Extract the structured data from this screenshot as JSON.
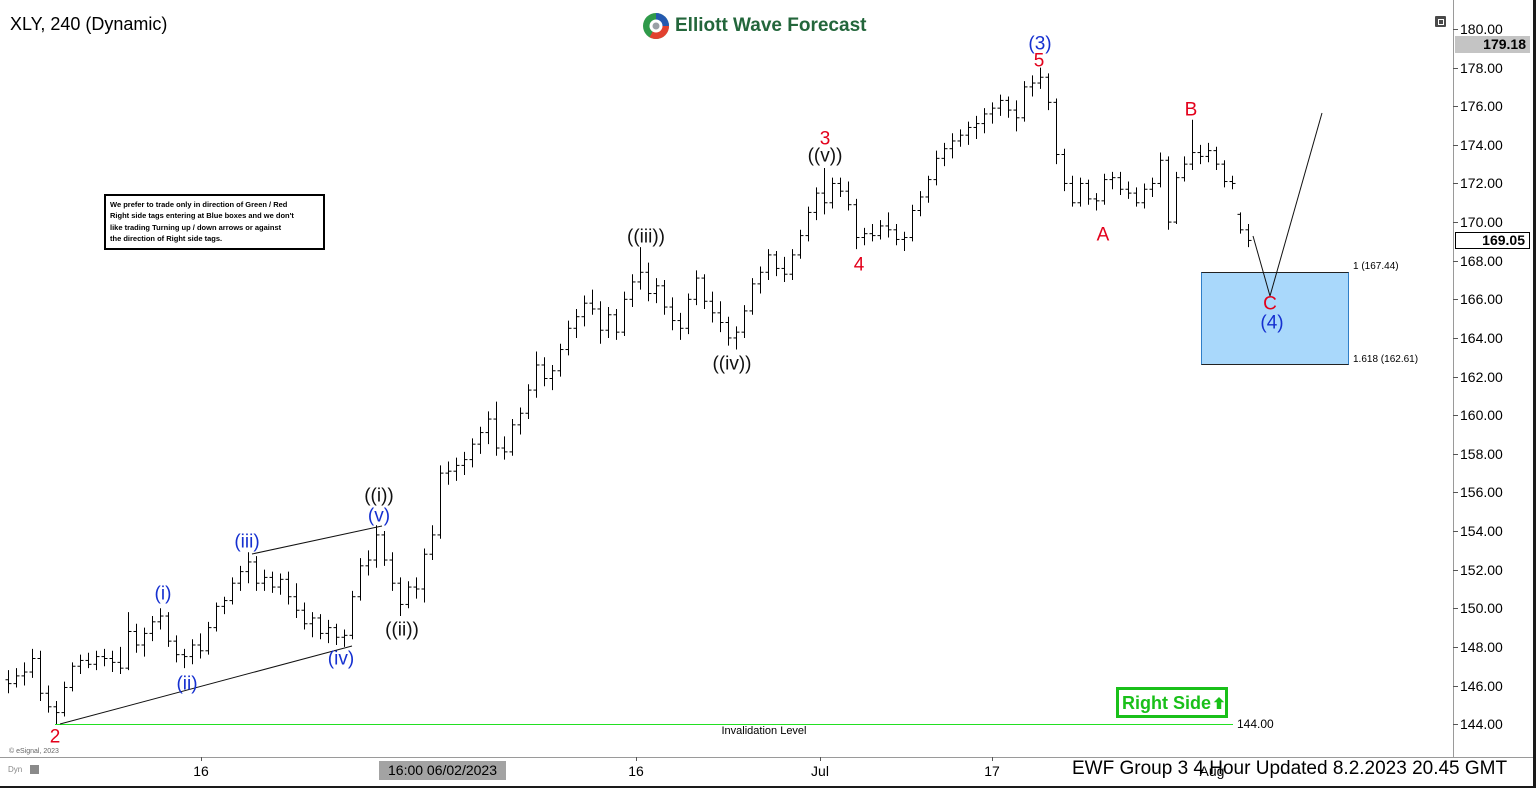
{
  "header": {
    "brand": "Elliott Wave Forecast"
  },
  "note_box": {
    "lines": [
      "We prefer to trade only in direction of Green / Red",
      "Right side tags entering at Blue boxes and we don't",
      "like trading Turning up / down arrows or against",
      "the direction of Right side tags."
    ]
  },
  "right_side_tag": {
    "label": "Right Side"
  },
  "invalidation": {
    "label": "Invalidation Level",
    "value": "144.00"
  },
  "fib_zone": {
    "upper_label": "1 (167.44)",
    "lower_label": "1.618 (162.61)",
    "upper": 167.44,
    "lower": 162.61
  },
  "footer": {
    "watermark": "© eSignal, 2023",
    "status": "EWF Group 3 4 Hour Updated 8.2.2023 20.45 GMT",
    "mode": "Dyn"
  },
  "icons": {
    "logo": "ewf-logo-icon",
    "window": "window-restore-icon",
    "chart_mode": "chart-mode-icon",
    "right_side": "arrow-up-icon"
  },
  "colors": {
    "wave_red": "#e3001b",
    "wave_blue": "#1530d0",
    "wave_black": "#111111",
    "fib_box_fill": "#a9d8fb",
    "fib_box_border": "#2f7fc8",
    "invalidation_line": "#22e022",
    "right_side_green": "#19c019",
    "brand_green": "#23663b",
    "price_bars": "#000000"
  },
  "chart_data": {
    "type": "bar",
    "title": "XLY, 240 (Dynamic)",
    "ylim": [
      142.3,
      181.5
    ],
    "grid": false,
    "y_ticks": [
      "180.00",
      "178.00",
      "176.00",
      "174.00",
      "172.00",
      "170.00",
      "168.00",
      "166.00",
      "164.00",
      "162.00",
      "160.00",
      "158.00",
      "156.00",
      "154.00",
      "152.00",
      "150.00",
      "148.00",
      "146.00",
      "144.00"
    ],
    "x_ticks": [
      "16",
      "16",
      "Jul",
      "17",
      "Aug"
    ],
    "crosshair_time": "16:00 06/02/2023",
    "highlight_price": "179.18",
    "last_price": "169.05",
    "wave_labels": [
      {
        "text": "(3)",
        "color": "#1530d0"
      },
      {
        "text": "5",
        "color": "#e3001b"
      },
      {
        "text": "3",
        "color": "#e3001b"
      },
      {
        "text": "((v))",
        "color": "#111111"
      },
      {
        "text": "B",
        "color": "#e3001b"
      },
      {
        "text": "A",
        "color": "#e3001b"
      },
      {
        "text": "4",
        "color": "#e3001b"
      },
      {
        "text": "((iii))",
        "color": "#111111"
      },
      {
        "text": "((iv))",
        "color": "#111111"
      },
      {
        "text": "C",
        "color": "#e3001b"
      },
      {
        "text": "(4)",
        "color": "#1530d0"
      },
      {
        "text": "((i))",
        "color": "#111111"
      },
      {
        "text": "(v)",
        "color": "#1530d0"
      },
      {
        "text": "(iii)",
        "color": "#1530d0"
      },
      {
        "text": "(i)",
        "color": "#1530d0"
      },
      {
        "text": "((ii))",
        "color": "#111111"
      },
      {
        "text": "(iv)",
        "color": "#1530d0"
      },
      {
        "text": "(ii)",
        "color": "#1530d0"
      },
      {
        "text": "2",
        "color": "#e3001b"
      }
    ],
    "ohlc": [
      [
        146.3,
        146.8,
        145.6,
        146.1
      ],
      [
        146.1,
        146.9,
        145.9,
        146.5
      ],
      [
        146.5,
        147.2,
        146.0,
        146.7
      ],
      [
        146.7,
        147.9,
        146.4,
        147.4
      ],
      [
        147.4,
        147.8,
        145.2,
        145.6
      ],
      [
        145.6,
        146.0,
        144.6,
        144.9
      ],
      [
        144.9,
        145.2,
        144.0,
        144.6
      ],
      [
        144.6,
        146.2,
        144.4,
        145.9
      ],
      [
        145.9,
        147.2,
        145.7,
        147.0
      ],
      [
        147.0,
        147.6,
        146.6,
        147.3
      ],
      [
        147.3,
        147.7,
        146.9,
        147.1
      ],
      [
        147.1,
        147.8,
        146.8,
        147.5
      ],
      [
        147.5,
        147.9,
        147.0,
        147.4
      ],
      [
        147.4,
        147.8,
        146.7,
        147.2
      ],
      [
        147.2,
        148.0,
        146.6,
        146.9
      ],
      [
        146.9,
        149.8,
        146.8,
        148.8
      ],
      [
        148.8,
        149.2,
        147.7,
        148.1
      ],
      [
        148.1,
        149.0,
        147.5,
        148.7
      ],
      [
        148.7,
        149.6,
        148.3,
        149.3
      ],
      [
        149.3,
        150.0,
        148.9,
        149.6
      ],
      [
        149.6,
        149.8,
        148.0,
        148.3
      ],
      [
        148.3,
        148.6,
        147.2,
        147.6
      ],
      [
        147.6,
        147.9,
        146.9,
        147.5
      ],
      [
        147.5,
        148.4,
        147.1,
        148.1
      ],
      [
        148.1,
        148.7,
        147.4,
        147.8
      ],
      [
        147.8,
        149.3,
        147.6,
        149.0
      ],
      [
        149.0,
        150.3,
        148.8,
        150.1
      ],
      [
        150.1,
        150.6,
        149.7,
        150.4
      ],
      [
        150.4,
        151.6,
        150.2,
        151.3
      ],
      [
        151.3,
        152.2,
        150.9,
        151.9
      ],
      [
        151.9,
        152.9,
        151.3,
        152.4
      ],
      [
        152.4,
        152.7,
        150.9,
        151.3
      ],
      [
        151.3,
        152.0,
        150.9,
        151.6
      ],
      [
        151.6,
        151.9,
        150.8,
        151.1
      ],
      [
        151.1,
        151.8,
        150.7,
        151.5
      ],
      [
        151.5,
        151.9,
        150.2,
        150.6
      ],
      [
        150.6,
        151.3,
        149.5,
        149.9
      ],
      [
        149.9,
        150.3,
        148.9,
        149.2
      ],
      [
        149.2,
        149.8,
        148.5,
        149.5
      ],
      [
        149.5,
        149.7,
        148.4,
        148.7
      ],
      [
        148.7,
        149.4,
        148.2,
        149.0
      ],
      [
        149.0,
        149.2,
        148.1,
        148.5
      ],
      [
        148.5,
        148.9,
        148.0,
        148.6
      ],
      [
        148.6,
        150.9,
        148.4,
        150.6
      ],
      [
        150.6,
        152.6,
        150.4,
        152.2
      ],
      [
        152.2,
        153.0,
        151.7,
        152.5
      ],
      [
        152.5,
        154.3,
        152.1,
        153.8
      ],
      [
        153.8,
        154.0,
        152.2,
        152.5
      ],
      [
        152.5,
        152.9,
        150.9,
        151.3
      ],
      [
        151.3,
        151.6,
        149.6,
        150.2
      ],
      [
        150.2,
        151.4,
        150.0,
        151.1
      ],
      [
        151.1,
        151.6,
        150.5,
        151.0
      ],
      [
        151.0,
        153.1,
        150.3,
        152.8
      ],
      [
        152.8,
        154.3,
        152.5,
        153.8
      ],
      [
        153.8,
        157.4,
        153.6,
        157.0
      ],
      [
        157.0,
        157.6,
        156.4,
        157.1
      ],
      [
        157.1,
        157.8,
        156.6,
        157.4
      ],
      [
        157.4,
        158.1,
        156.9,
        157.7
      ],
      [
        157.7,
        158.8,
        157.3,
        158.5
      ],
      [
        158.5,
        159.4,
        158.0,
        159.1
      ],
      [
        159.1,
        160.2,
        158.5,
        159.8
      ],
      [
        159.8,
        160.7,
        157.9,
        158.3
      ],
      [
        158.3,
        158.9,
        157.7,
        158.1
      ],
      [
        158.1,
        159.8,
        157.9,
        159.5
      ],
      [
        159.5,
        160.4,
        159.0,
        160.1
      ],
      [
        160.1,
        161.6,
        159.8,
        161.3
      ],
      [
        161.3,
        163.3,
        160.9,
        162.6
      ],
      [
        162.6,
        163.0,
        161.5,
        161.9
      ],
      [
        161.9,
        162.6,
        161.3,
        162.3
      ],
      [
        162.3,
        163.7,
        162.0,
        163.4
      ],
      [
        163.4,
        164.9,
        163.1,
        164.5
      ],
      [
        164.5,
        165.5,
        164.0,
        165.1
      ],
      [
        165.1,
        166.2,
        164.6,
        165.8
      ],
      [
        165.8,
        166.5,
        165.2,
        165.5
      ],
      [
        165.5,
        165.9,
        163.7,
        164.4
      ],
      [
        164.4,
        165.6,
        164.0,
        165.2
      ],
      [
        165.2,
        165.5,
        163.9,
        164.3
      ],
      [
        164.3,
        166.4,
        164.1,
        166.0
      ],
      [
        166.0,
        167.3,
        165.6,
        166.9
      ],
      [
        166.9,
        168.7,
        166.5,
        167.4
      ],
      [
        167.4,
        167.9,
        165.9,
        166.3
      ],
      [
        166.3,
        167.1,
        165.8,
        166.7
      ],
      [
        166.7,
        167.0,
        165.2,
        165.6
      ],
      [
        165.6,
        166.1,
        164.4,
        164.9
      ],
      [
        164.9,
        165.3,
        163.9,
        164.5
      ],
      [
        164.5,
        166.3,
        164.2,
        166.0
      ],
      [
        166.0,
        167.5,
        165.7,
        167.1
      ],
      [
        167.1,
        167.3,
        165.5,
        165.9
      ],
      [
        165.9,
        166.4,
        164.8,
        165.3
      ],
      [
        165.3,
        165.9,
        164.3,
        164.8
      ],
      [
        164.8,
        165.1,
        163.6,
        164.0
      ],
      [
        164.0,
        164.6,
        163.4,
        164.3
      ],
      [
        164.3,
        165.7,
        164.0,
        165.4
      ],
      [
        165.4,
        167.1,
        165.2,
        166.8
      ],
      [
        166.8,
        167.7,
        166.3,
        167.4
      ],
      [
        167.4,
        168.6,
        167.0,
        168.3
      ],
      [
        168.3,
        168.5,
        167.2,
        167.6
      ],
      [
        167.6,
        168.2,
        166.9,
        167.3
      ],
      [
        167.3,
        168.6,
        167.0,
        168.3
      ],
      [
        168.3,
        169.6,
        168.1,
        169.3
      ],
      [
        169.3,
        170.8,
        169.0,
        170.5
      ],
      [
        170.5,
        171.8,
        170.1,
        171.5
      ],
      [
        171.5,
        172.8,
        170.4,
        171.0
      ],
      [
        171.0,
        172.3,
        170.7,
        172.0
      ],
      [
        172.0,
        172.3,
        171.3,
        171.6
      ],
      [
        171.6,
        172.1,
        170.6,
        170.9
      ],
      [
        170.9,
        171.2,
        168.6,
        169.2
      ],
      [
        169.2,
        169.7,
        168.8,
        169.4
      ],
      [
        169.4,
        169.9,
        169.0,
        169.3
      ],
      [
        169.3,
        170.1,
        169.1,
        169.8
      ],
      [
        169.8,
        170.5,
        169.2,
        169.6
      ],
      [
        169.6,
        169.9,
        168.8,
        169.1
      ],
      [
        169.1,
        169.5,
        168.5,
        169.2
      ],
      [
        169.2,
        170.9,
        169.0,
        170.6
      ],
      [
        170.6,
        171.6,
        170.3,
        171.3
      ],
      [
        171.3,
        172.4,
        171.0,
        172.2
      ],
      [
        172.2,
        173.7,
        171.9,
        173.3
      ],
      [
        173.3,
        174.1,
        172.9,
        173.8
      ],
      [
        173.8,
        174.6,
        173.3,
        174.2
      ],
      [
        174.2,
        174.8,
        173.9,
        174.5
      ],
      [
        174.5,
        175.2,
        174.0,
        174.9
      ],
      [
        174.9,
        175.5,
        174.3,
        175.1
      ],
      [
        175.1,
        175.9,
        174.6,
        175.6
      ],
      [
        175.6,
        176.2,
        175.1,
        175.9
      ],
      [
        175.9,
        176.6,
        175.5,
        176.3
      ],
      [
        176.3,
        176.5,
        175.4,
        175.8
      ],
      [
        175.8,
        176.3,
        174.7,
        175.4
      ],
      [
        175.4,
        177.3,
        175.2,
        177.0
      ],
      [
        177.0,
        177.6,
        176.5,
        177.2
      ],
      [
        177.2,
        178.0,
        176.9,
        177.5
      ],
      [
        177.5,
        177.7,
        175.8,
        176.2
      ],
      [
        176.2,
        176.4,
        173.0,
        173.5
      ],
      [
        173.5,
        173.8,
        171.6,
        172.0
      ],
      [
        172.0,
        172.4,
        170.8,
        171.0
      ],
      [
        171.0,
        172.3,
        170.8,
        172.0
      ],
      [
        172.0,
        172.2,
        170.9,
        171.2
      ],
      [
        171.2,
        171.5,
        170.6,
        171.1
      ],
      [
        171.1,
        172.5,
        170.9,
        172.2
      ],
      [
        172.2,
        172.6,
        171.7,
        172.3
      ],
      [
        172.3,
        172.6,
        171.4,
        171.7
      ],
      [
        171.7,
        172.1,
        171.2,
        171.5
      ],
      [
        171.5,
        171.8,
        170.8,
        171.0
      ],
      [
        171.0,
        172.0,
        170.7,
        171.7
      ],
      [
        171.7,
        172.3,
        171.3,
        172.0
      ],
      [
        172.0,
        173.6,
        171.8,
        173.2
      ],
      [
        173.2,
        173.4,
        169.6,
        170.0
      ],
      [
        170.0,
        172.6,
        169.9,
        172.3
      ],
      [
        172.3,
        173.4,
        172.1,
        173.0
      ],
      [
        173.0,
        175.3,
        172.7,
        173.6
      ],
      [
        173.6,
        174.0,
        173.0,
        173.4
      ],
      [
        173.4,
        174.1,
        173.1,
        173.7
      ],
      [
        173.7,
        173.9,
        172.7,
        173.0
      ],
      [
        173.0,
        173.2,
        171.8,
        172.1
      ],
      [
        172.1,
        172.4,
        171.7,
        172.0
      ],
      [
        170.4,
        170.5,
        169.4,
        169.6
      ],
      [
        169.6,
        169.9,
        168.7,
        169.05
      ]
    ]
  }
}
